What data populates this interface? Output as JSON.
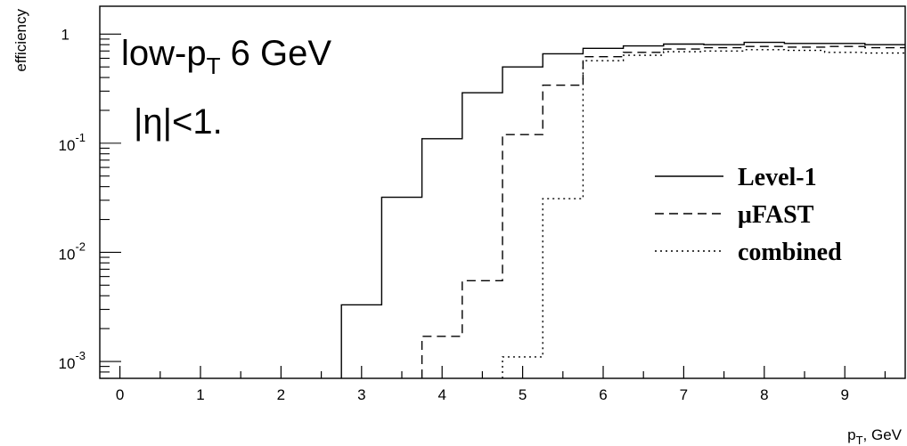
{
  "chart_data": {
    "type": "line",
    "xlabel": "p_T, GeV",
    "ylabel": "efficiency",
    "xlim": [
      -0.25,
      9.75
    ],
    "ylim": [
      0.0007,
      1.8
    ],
    "yscale": "log",
    "xticks": [
      0,
      1,
      2,
      3,
      4,
      5,
      6,
      7,
      8,
      9
    ],
    "yticks": [
      {
        "value": 1,
        "base": "1",
        "exp": ""
      },
      {
        "value": 0.1,
        "base": "10",
        "exp": "-1"
      },
      {
        "value": 0.01,
        "base": "10",
        "exp": "-2"
      },
      {
        "value": 0.001,
        "base": "10",
        "exp": "-3"
      }
    ],
    "annotations": {
      "line1": {
        "base": "low-p",
        "sub": "T",
        "rest": " 6 GeV"
      },
      "line2": "|η|<1."
    },
    "legend_position": "right",
    "series": [
      {
        "name": "Level-1",
        "style": "solid",
        "bins": [
          {
            "x0": 2.75,
            "x1": 3.25,
            "y": 0.0033
          },
          {
            "x0": 3.25,
            "x1": 3.75,
            "y": 0.032
          },
          {
            "x0": 3.75,
            "x1": 4.25,
            "y": 0.11
          },
          {
            "x0": 4.25,
            "x1": 4.75,
            "y": 0.29
          },
          {
            "x0": 4.75,
            "x1": 5.25,
            "y": 0.5
          },
          {
            "x0": 5.25,
            "x1": 5.75,
            "y": 0.66
          },
          {
            "x0": 5.75,
            "x1": 6.25,
            "y": 0.74
          },
          {
            "x0": 6.25,
            "x1": 6.75,
            "y": 0.78
          },
          {
            "x0": 6.75,
            "x1": 7.25,
            "y": 0.81
          },
          {
            "x0": 7.25,
            "x1": 7.75,
            "y": 0.8
          },
          {
            "x0": 7.75,
            "x1": 8.25,
            "y": 0.84
          },
          {
            "x0": 8.25,
            "x1": 8.75,
            "y": 0.82
          },
          {
            "x0": 8.75,
            "x1": 9.25,
            "y": 0.82
          },
          {
            "x0": 9.25,
            "x1": 9.75,
            "y": 0.8
          }
        ]
      },
      {
        "name": "μFAST",
        "style": "dashed",
        "bins": [
          {
            "x0": 3.75,
            "x1": 4.25,
            "y": 0.0017
          },
          {
            "x0": 4.25,
            "x1": 4.75,
            "y": 0.0055
          },
          {
            "x0": 4.75,
            "x1": 5.25,
            "y": 0.12
          },
          {
            "x0": 5.25,
            "x1": 5.75,
            "y": 0.34
          },
          {
            "x0": 5.75,
            "x1": 6.25,
            "y": 0.62
          },
          {
            "x0": 6.25,
            "x1": 6.75,
            "y": 0.68
          },
          {
            "x0": 6.75,
            "x1": 7.25,
            "y": 0.73
          },
          {
            "x0": 7.25,
            "x1": 7.75,
            "y": 0.75
          },
          {
            "x0": 7.75,
            "x1": 8.25,
            "y": 0.77
          },
          {
            "x0": 8.25,
            "x1": 8.75,
            "y": 0.76
          },
          {
            "x0": 8.75,
            "x1": 9.25,
            "y": 0.77
          },
          {
            "x0": 9.25,
            "x1": 9.75,
            "y": 0.75
          }
        ]
      },
      {
        "name": "combined",
        "style": "dotted",
        "bins": [
          {
            "x0": 4.75,
            "x1": 5.25,
            "y": 0.0011
          },
          {
            "x0": 5.25,
            "x1": 5.75,
            "y": 0.031
          },
          {
            "x0": 5.75,
            "x1": 6.25,
            "y": 0.57
          },
          {
            "x0": 6.25,
            "x1": 6.75,
            "y": 0.64
          },
          {
            "x0": 6.75,
            "x1": 7.25,
            "y": 0.69
          },
          {
            "x0": 7.25,
            "x1": 7.75,
            "y": 0.7
          },
          {
            "x0": 7.75,
            "x1": 8.25,
            "y": 0.72
          },
          {
            "x0": 8.25,
            "x1": 8.75,
            "y": 0.71
          },
          {
            "x0": 8.75,
            "x1": 9.25,
            "y": 0.68
          },
          {
            "x0": 9.25,
            "x1": 9.75,
            "y": 0.67
          }
        ]
      }
    ]
  }
}
